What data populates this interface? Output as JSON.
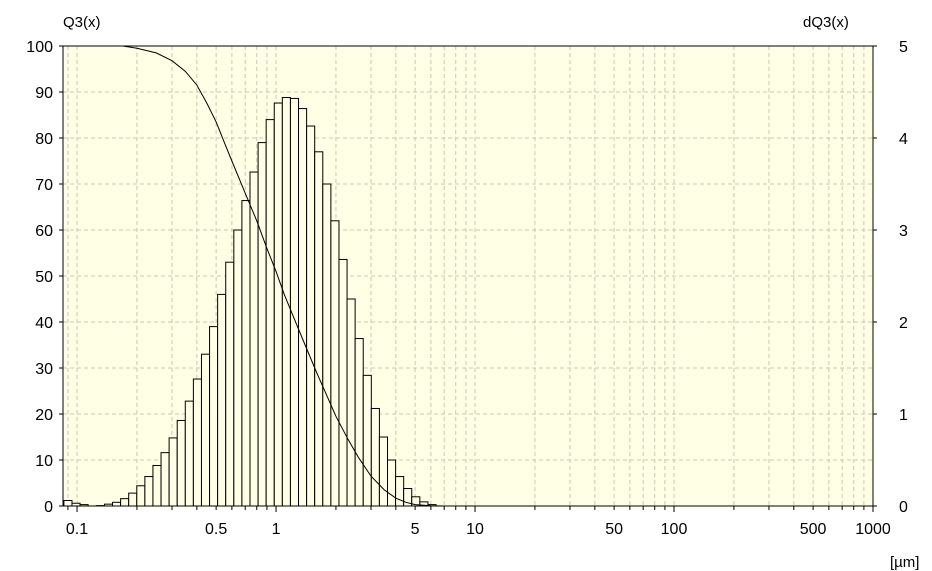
{
  "chart_data": {
    "type": "bar",
    "x_scale": "log",
    "xlim": [
      0.085,
      1000
    ],
    "y_left": {
      "label": "Q3(x)",
      "lim": [
        0,
        100
      ],
      "ticks": [
        "0",
        "10",
        "20",
        "30",
        "40",
        "50",
        "60",
        "70",
        "80",
        "90",
        "100"
      ]
    },
    "y_right": {
      "label": "dQ3(x)",
      "lim": [
        0,
        5
      ],
      "ticks": [
        "0",
        "1",
        "2",
        "3",
        "4",
        "5"
      ]
    },
    "x_ticks": [
      {
        "value": 0.1,
        "label": "0.1"
      },
      {
        "value": 0.5,
        "label": "0.5"
      },
      {
        "value": 1,
        "label": "1"
      },
      {
        "value": 5,
        "label": "5"
      },
      {
        "value": 10,
        "label": "10"
      },
      {
        "value": 50,
        "label": "50"
      },
      {
        "value": 100,
        "label": "100"
      },
      {
        "value": 500,
        "label": "500"
      },
      {
        "value": 1000,
        "label": "1000"
      }
    ],
    "x_unit": "[µm]",
    "grid": true,
    "colors": {
      "plot_background": "#ffffe6",
      "grid": "#c8c8b4",
      "bar_fill": "#ffffe6",
      "stroke": "#000000"
    },
    "series": [
      {
        "kind": "histogram",
        "axis": "right",
        "points": [
          [
            0.09,
            0.06
          ],
          [
            0.0988,
            0.03
          ],
          [
            0.1085,
            0.015
          ],
          [
            0.131,
            0.004
          ],
          [
            0.1439,
            0.02
          ],
          [
            0.158,
            0.04
          ],
          [
            0.1735,
            0.08
          ],
          [
            0.1905,
            0.14
          ],
          [
            0.2092,
            0.22
          ],
          [
            0.2297,
            0.32
          ],
          [
            0.2522,
            0.44
          ],
          [
            0.277,
            0.58
          ],
          [
            0.3041,
            0.74
          ],
          [
            0.334,
            0.93
          ],
          [
            0.3667,
            1.14
          ],
          [
            0.4027,
            1.38
          ],
          [
            0.4422,
            1.65
          ],
          [
            0.4856,
            1.95
          ],
          [
            0.5332,
            2.3
          ],
          [
            0.5855,
            2.65
          ],
          [
            0.643,
            3.0
          ],
          [
            0.706,
            3.32
          ],
          [
            0.7753,
            3.63
          ],
          [
            0.8514,
            3.95
          ],
          [
            0.9349,
            4.2
          ],
          [
            1.0266,
            4.38
          ],
          [
            1.1273,
            4.44
          ],
          [
            1.2379,
            4.43
          ],
          [
            1.3594,
            4.32
          ],
          [
            1.4928,
            4.13
          ],
          [
            1.6393,
            3.85
          ],
          [
            1.8001,
            3.5
          ],
          [
            1.9767,
            3.1
          ],
          [
            2.1707,
            2.68
          ],
          [
            2.3836,
            2.25
          ],
          [
            2.6175,
            1.82
          ],
          [
            2.8743,
            1.42
          ],
          [
            3.1563,
            1.06
          ],
          [
            3.466,
            0.75
          ],
          [
            3.8061,
            0.5
          ],
          [
            4.1795,
            0.32
          ],
          [
            4.5896,
            0.19
          ],
          [
            5.04,
            0.1
          ],
          [
            5.5345,
            0.045
          ],
          [
            6.0775,
            0.015
          ]
        ]
      },
      {
        "kind": "cumulative",
        "axis": "left",
        "points": [
          [
            0.09,
            100
          ],
          [
            0.17,
            100
          ],
          [
            0.2,
            99.5
          ],
          [
            0.25,
            98.5
          ],
          [
            0.3,
            96.8
          ],
          [
            0.35,
            94.5
          ],
          [
            0.4,
            91.5
          ],
          [
            0.45,
            87.5
          ],
          [
            0.5,
            83.5
          ],
          [
            0.55,
            79
          ],
          [
            0.6,
            75
          ],
          [
            0.7,
            68
          ],
          [
            0.8,
            62
          ],
          [
            0.9,
            56
          ],
          [
            1.0,
            51
          ],
          [
            1.1,
            46
          ],
          [
            1.2,
            42
          ],
          [
            1.4,
            35
          ],
          [
            1.6,
            29
          ],
          [
            1.8,
            24
          ],
          [
            2.0,
            19.5
          ],
          [
            2.3,
            14.5
          ],
          [
            2.6,
            10.5
          ],
          [
            3.0,
            6.5
          ],
          [
            3.5,
            3.5
          ],
          [
            4.0,
            1.7
          ],
          [
            4.5,
            0.8
          ],
          [
            5.0,
            0.3
          ],
          [
            6.0,
            0.05
          ],
          [
            7.0,
            0
          ]
        ]
      }
    ]
  }
}
